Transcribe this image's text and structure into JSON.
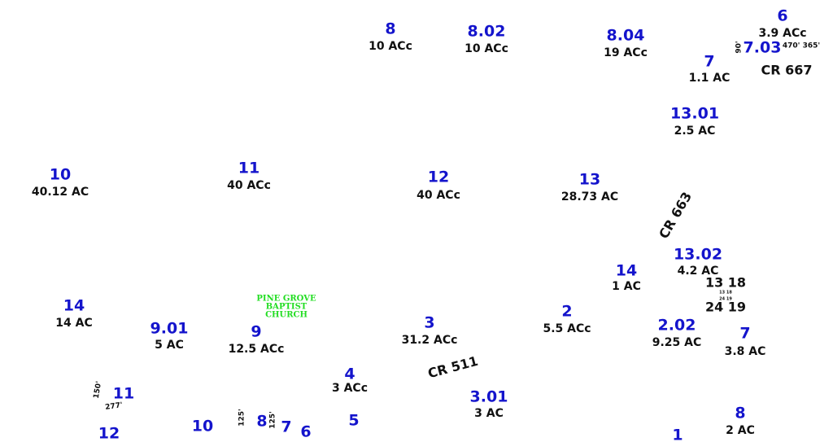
{
  "parcels": [
    {
      "number": "8",
      "acreage": "10 ACc"
    },
    {
      "number": "8.02",
      "acreage": "10 ACc"
    },
    {
      "number": "8.04",
      "acreage": "19 ACc"
    },
    {
      "number": "6",
      "acreage": "3.9 ACc"
    },
    {
      "number": "7",
      "acreage": "1.1 AC"
    },
    {
      "number": "13.01",
      "acreage": "2.5 AC"
    },
    {
      "number": "10",
      "acreage": "40.12 AC"
    },
    {
      "number": "11",
      "acreage": "40 ACc"
    },
    {
      "number": "12",
      "acreage": "40 ACc"
    },
    {
      "number": "13",
      "acreage": "28.73 AC"
    },
    {
      "number": "13.02",
      "acreage": "4.2 AC"
    },
    {
      "number": "14",
      "acreage": "1 AC"
    },
    {
      "number": "14",
      "acreage": "14 AC"
    },
    {
      "number": "9.01",
      "acreage": "5 AC"
    },
    {
      "number": "9",
      "acreage": "12.5 ACc"
    },
    {
      "number": "3",
      "acreage": "31.2 ACc"
    },
    {
      "number": "2",
      "acreage": "5.5 ACc"
    },
    {
      "number": "2.02",
      "acreage": "9.25 AC"
    },
    {
      "number": "7",
      "acreage": "3.8 AC"
    },
    {
      "number": "4",
      "acreage": "3 ACc"
    },
    {
      "number": "3.01",
      "acreage": "3 AC"
    },
    {
      "number": "8",
      "acreage": "2 AC"
    }
  ],
  "lot_numbers": [
    "7.03",
    "11",
    "12",
    "10",
    "8",
    "7",
    "6",
    "5",
    "1"
  ],
  "section_labels": [
    "13  18",
    "24  19"
  ],
  "small_section_labels": [
    "13 18",
    "24 19"
  ],
  "roads": [
    "CR 667",
    "CR 663",
    "CR 511"
  ],
  "dimensions": [
    "90'",
    "470'  365'",
    "150'",
    "277'",
    "125'",
    "125'"
  ],
  "landmark": {
    "lines": [
      "PINE GROVE",
      "BAPTIST",
      "CHURCH"
    ]
  }
}
